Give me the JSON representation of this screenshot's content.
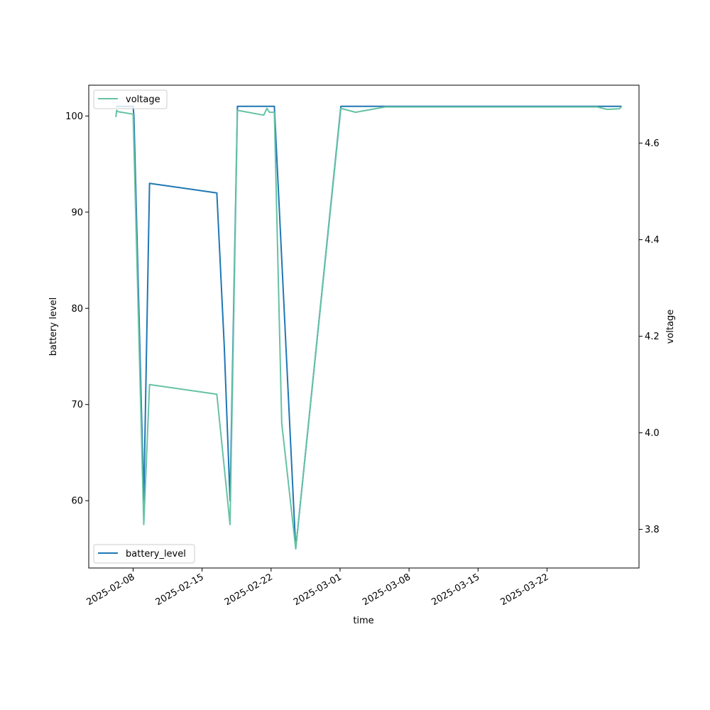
{
  "chart_data": {
    "type": "line",
    "xlabel": "time",
    "x_axis_type": "date",
    "x_ticks": [
      "2025-02-08",
      "2025-02-15",
      "2025-02-22",
      "2025-03-01",
      "2025-03-08",
      "2025-03-15",
      "2025-03-22"
    ],
    "xlim": [
      "2025-02-03T12:00",
      "2025-03-31T08:00"
    ],
    "grid": false,
    "axes": [
      {
        "side": "left",
        "ylabel": "battery level",
        "ylim": [
          53,
          103.2
        ],
        "ticks": [
          60,
          70,
          80,
          90,
          100
        ],
        "legend": "bottom-left"
      },
      {
        "side": "right",
        "ylabel": "voltage",
        "ylim": [
          3.72,
          4.72
        ],
        "ticks": [
          "3.8",
          "4.0",
          "4.2",
          "4.4",
          "4.6"
        ],
        "legend": "top-left"
      }
    ],
    "series": [
      {
        "name": "battery_level",
        "axis": "left",
        "color": "#1f77b4",
        "points": [
          [
            "2025-02-06T06:00",
            101
          ],
          [
            "2025-02-08T00:00",
            101
          ],
          [
            "2025-02-08T02:00",
            100
          ],
          [
            "2025-02-09T02:00",
            60
          ],
          [
            "2025-02-09T16:00",
            93
          ],
          [
            "2025-02-16T12:00",
            92
          ],
          [
            "2025-02-17T06:00",
            76
          ],
          [
            "2025-02-17T20:00",
            60
          ],
          [
            "2025-02-18T14:00",
            101
          ],
          [
            "2025-02-22T08:00",
            101
          ],
          [
            "2025-02-24T12:00",
            55
          ],
          [
            "2025-03-01T02:00",
            101
          ],
          [
            "2025-03-29T14:00",
            101
          ]
        ]
      },
      {
        "name": "voltage",
        "axis": "right",
        "color": "#66c2a5",
        "points": [
          [
            "2025-02-06T06:00",
            4.654
          ],
          [
            "2025-02-06T08:00",
            4.668
          ],
          [
            "2025-02-06T12:00",
            4.665
          ],
          [
            "2025-02-08T00:00",
            4.66
          ],
          [
            "2025-02-09T02:00",
            3.81
          ],
          [
            "2025-02-09T16:00",
            4.1
          ],
          [
            "2025-02-16T12:00",
            4.08
          ],
          [
            "2025-02-17T20:00",
            3.81
          ],
          [
            "2025-02-18T14:00",
            4.668
          ],
          [
            "2025-02-21T06:00",
            4.658
          ],
          [
            "2025-02-21T14:00",
            4.672
          ],
          [
            "2025-02-21T20:00",
            4.664
          ],
          [
            "2025-02-22T08:00",
            4.664
          ],
          [
            "2025-02-23T02:00",
            4.02
          ],
          [
            "2025-02-24T12:00",
            3.76
          ],
          [
            "2025-03-01T02:00",
            4.672
          ],
          [
            "2025-03-02T14:00",
            4.664
          ],
          [
            "2025-03-05T14:00",
            4.675
          ],
          [
            "2025-03-27T02:00",
            4.675
          ],
          [
            "2025-03-28T02:00",
            4.67
          ],
          [
            "2025-03-29T08:00",
            4.671
          ],
          [
            "2025-03-29T14:00",
            4.676
          ]
        ]
      }
    ]
  }
}
